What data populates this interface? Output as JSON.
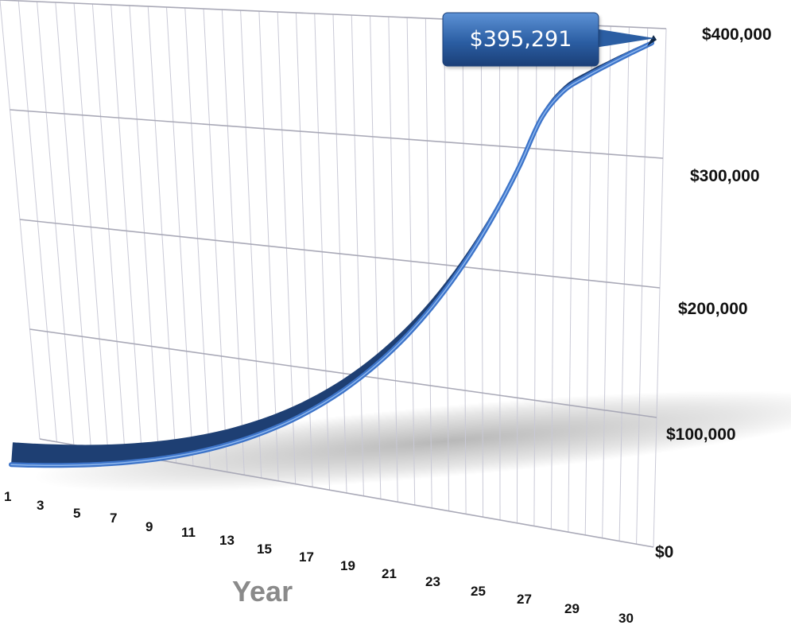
{
  "chart_data": {
    "type": "line",
    "title": "",
    "xlabel": "Year",
    "ylabel": "",
    "x_tick_labels": [
      "1",
      "3",
      "5",
      "7",
      "9",
      "11",
      "13",
      "15",
      "17",
      "19",
      "21",
      "23",
      "25",
      "27",
      "29",
      "30"
    ],
    "y_tick_labels": [
      "$0",
      "$100,000",
      "$200,000",
      "$300,000",
      "$400,000"
    ],
    "xlim": [
      1,
      30
    ],
    "ylim": [
      0,
      400000
    ],
    "grid": true,
    "callout": {
      "x": 30,
      "label": "$395,291"
    },
    "series": [
      {
        "x": [
          1,
          2,
          3,
          4,
          5,
          6,
          7,
          8,
          9,
          10,
          11,
          12,
          13,
          14,
          15,
          16,
          17,
          18,
          19,
          20,
          21,
          22,
          23,
          24,
          25,
          26,
          27,
          28,
          29,
          30
        ],
        "values": [
          12000,
          14550,
          17430,
          20680,
          24350,
          28480,
          33140,
          38390,
          44310,
          50970,
          58470,
          66900,
          76380,
          87030,
          98990,
          112400,
          127500,
          144400,
          163300,
          184600,
          208400,
          235000,
          264800,
          298200,
          335500,
          356600,
          368000,
          377700,
          386800,
          395291
        ]
      }
    ],
    "colors": {
      "line": "#3d74c9",
      "line_dark": "#1e3f73",
      "callout": "#2b5ea3",
      "grid": "#c9c9d6"
    }
  }
}
